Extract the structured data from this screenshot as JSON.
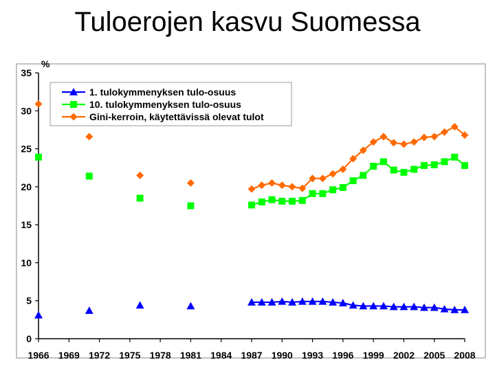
{
  "title": "Tuloerojen kasvu Suomessa",
  "chart_data": {
    "type": "line",
    "ylabel": "%",
    "xlabel": "",
    "ylim": [
      0,
      35
    ],
    "yticks": [
      0,
      5,
      10,
      15,
      20,
      25,
      30,
      35
    ],
    "xlim": [
      1966,
      2008
    ],
    "xticks": [
      1966,
      1969,
      1972,
      1975,
      1978,
      1981,
      1984,
      1987,
      1990,
      1993,
      1996,
      1999,
      2002,
      2005,
      2008
    ],
    "grid": false,
    "legend_position": "top-left",
    "series": [
      {
        "name": "1. tulokymmenyksen tulo-osuus",
        "color": "#0000ff",
        "marker": "triangle",
        "x": [
          1966,
          1971,
          1976,
          1981,
          1987,
          1988,
          1989,
          1990,
          1991,
          1992,
          1993,
          1994,
          1995,
          1996,
          1997,
          1998,
          1999,
          2000,
          2001,
          2002,
          2003,
          2004,
          2005,
          2006,
          2007,
          2008
        ],
        "values": [
          3.1,
          3.7,
          4.4,
          4.3,
          4.8,
          4.8,
          4.8,
          4.9,
          4.8,
          4.9,
          4.9,
          4.9,
          4.8,
          4.7,
          4.4,
          4.3,
          4.3,
          4.3,
          4.2,
          4.2,
          4.2,
          4.1,
          4.1,
          3.9,
          3.8,
          3.8
        ]
      },
      {
        "name": "10. tulokymmenyksen tulo-osuus",
        "color": "#00ff00",
        "marker": "square",
        "x": [
          1966,
          1971,
          1976,
          1981,
          1987,
          1988,
          1989,
          1990,
          1991,
          1992,
          1993,
          1994,
          1995,
          1996,
          1997,
          1998,
          1999,
          2000,
          2001,
          2002,
          2003,
          2004,
          2005,
          2006,
          2007,
          2008
        ],
        "values": [
          23.9,
          21.4,
          18.5,
          17.5,
          17.6,
          18.0,
          18.3,
          18.1,
          18.1,
          18.2,
          19.1,
          19.1,
          19.6,
          19.9,
          20.8,
          21.5,
          22.7,
          23.3,
          22.2,
          21.9,
          22.3,
          22.8,
          22.9,
          23.3,
          23.9,
          22.8
        ]
      },
      {
        "name": "Gini-kerroin, käytettävissä olevat tulot",
        "color": "#ff6a00",
        "marker": "diamond",
        "x": [
          1966,
          1971,
          1976,
          1981,
          1987,
          1988,
          1989,
          1990,
          1991,
          1992,
          1993,
          1994,
          1995,
          1996,
          1997,
          1998,
          1999,
          2000,
          2001,
          2002,
          2003,
          2004,
          2005,
          2006,
          2007,
          2008
        ],
        "values": [
          30.9,
          26.6,
          21.5,
          20.5,
          19.7,
          20.2,
          20.5,
          20.2,
          20.0,
          19.8,
          21.1,
          21.1,
          21.7,
          22.3,
          23.7,
          24.8,
          25.9,
          26.6,
          25.8,
          25.6,
          25.9,
          26.5,
          26.6,
          27.2,
          27.9,
          26.8
        ]
      }
    ]
  }
}
